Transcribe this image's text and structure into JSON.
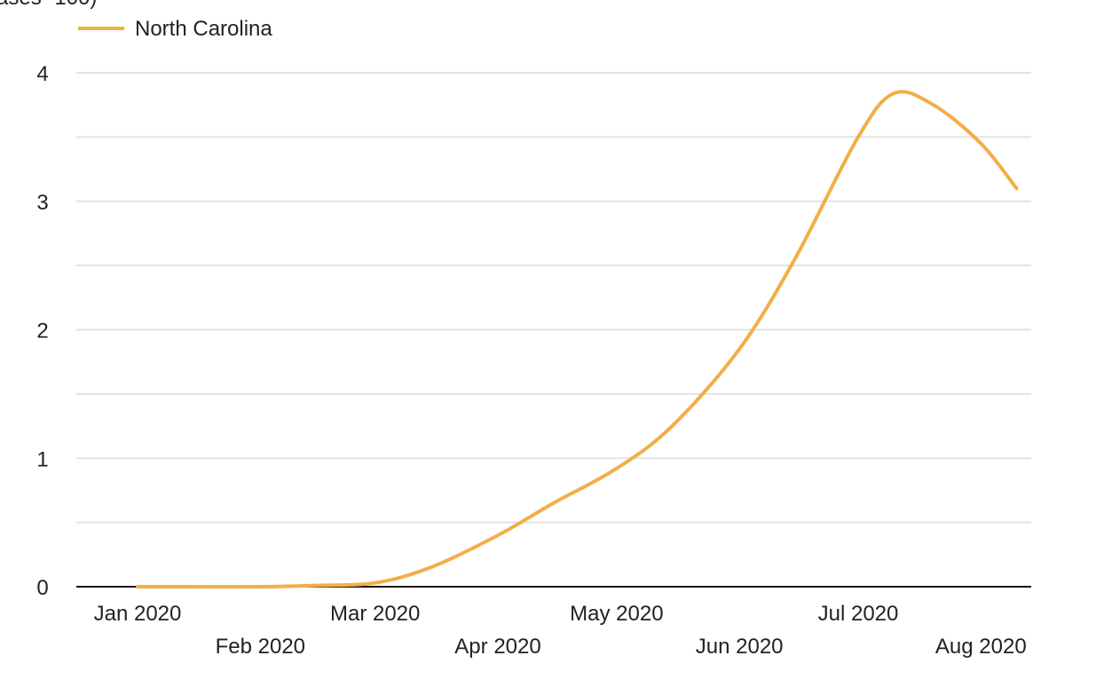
{
  "chart_data": {
    "type": "line",
    "title": "",
    "title_fragment": "ases -100)",
    "xlabel": "",
    "ylabel": "",
    "x_tick_labels": [
      "Jan 2020",
      "Feb 2020",
      "Mar 2020",
      "Apr 2020",
      "May 2020",
      "Jun 2020",
      "Jul 2020",
      "Aug 2020"
    ],
    "y_tick_labels": [
      "0",
      "1",
      "2",
      "3",
      "4"
    ],
    "ylim": [
      0,
      4
    ],
    "grid": true,
    "grid_minor_y": 0.5,
    "legend_position": "top-left",
    "series": [
      {
        "name": "North Carolina",
        "color": "#F2AE47",
        "points": [
          [
            "2020-01-01",
            0.0
          ],
          [
            "2020-01-15",
            0.0
          ],
          [
            "2020-02-01",
            0.0
          ],
          [
            "2020-02-15",
            0.01
          ],
          [
            "2020-03-01",
            0.03
          ],
          [
            "2020-03-15",
            0.15
          ],
          [
            "2020-04-01",
            0.4
          ],
          [
            "2020-04-15",
            0.65
          ],
          [
            "2020-05-01",
            0.92
          ],
          [
            "2020-05-15",
            1.25
          ],
          [
            "2020-06-01",
            1.85
          ],
          [
            "2020-06-15",
            2.55
          ],
          [
            "2020-07-01",
            3.5
          ],
          [
            "2020-07-10",
            3.84
          ],
          [
            "2020-07-20",
            3.75
          ],
          [
            "2020-08-01",
            3.45
          ],
          [
            "2020-08-10",
            3.1
          ]
        ]
      }
    ]
  }
}
